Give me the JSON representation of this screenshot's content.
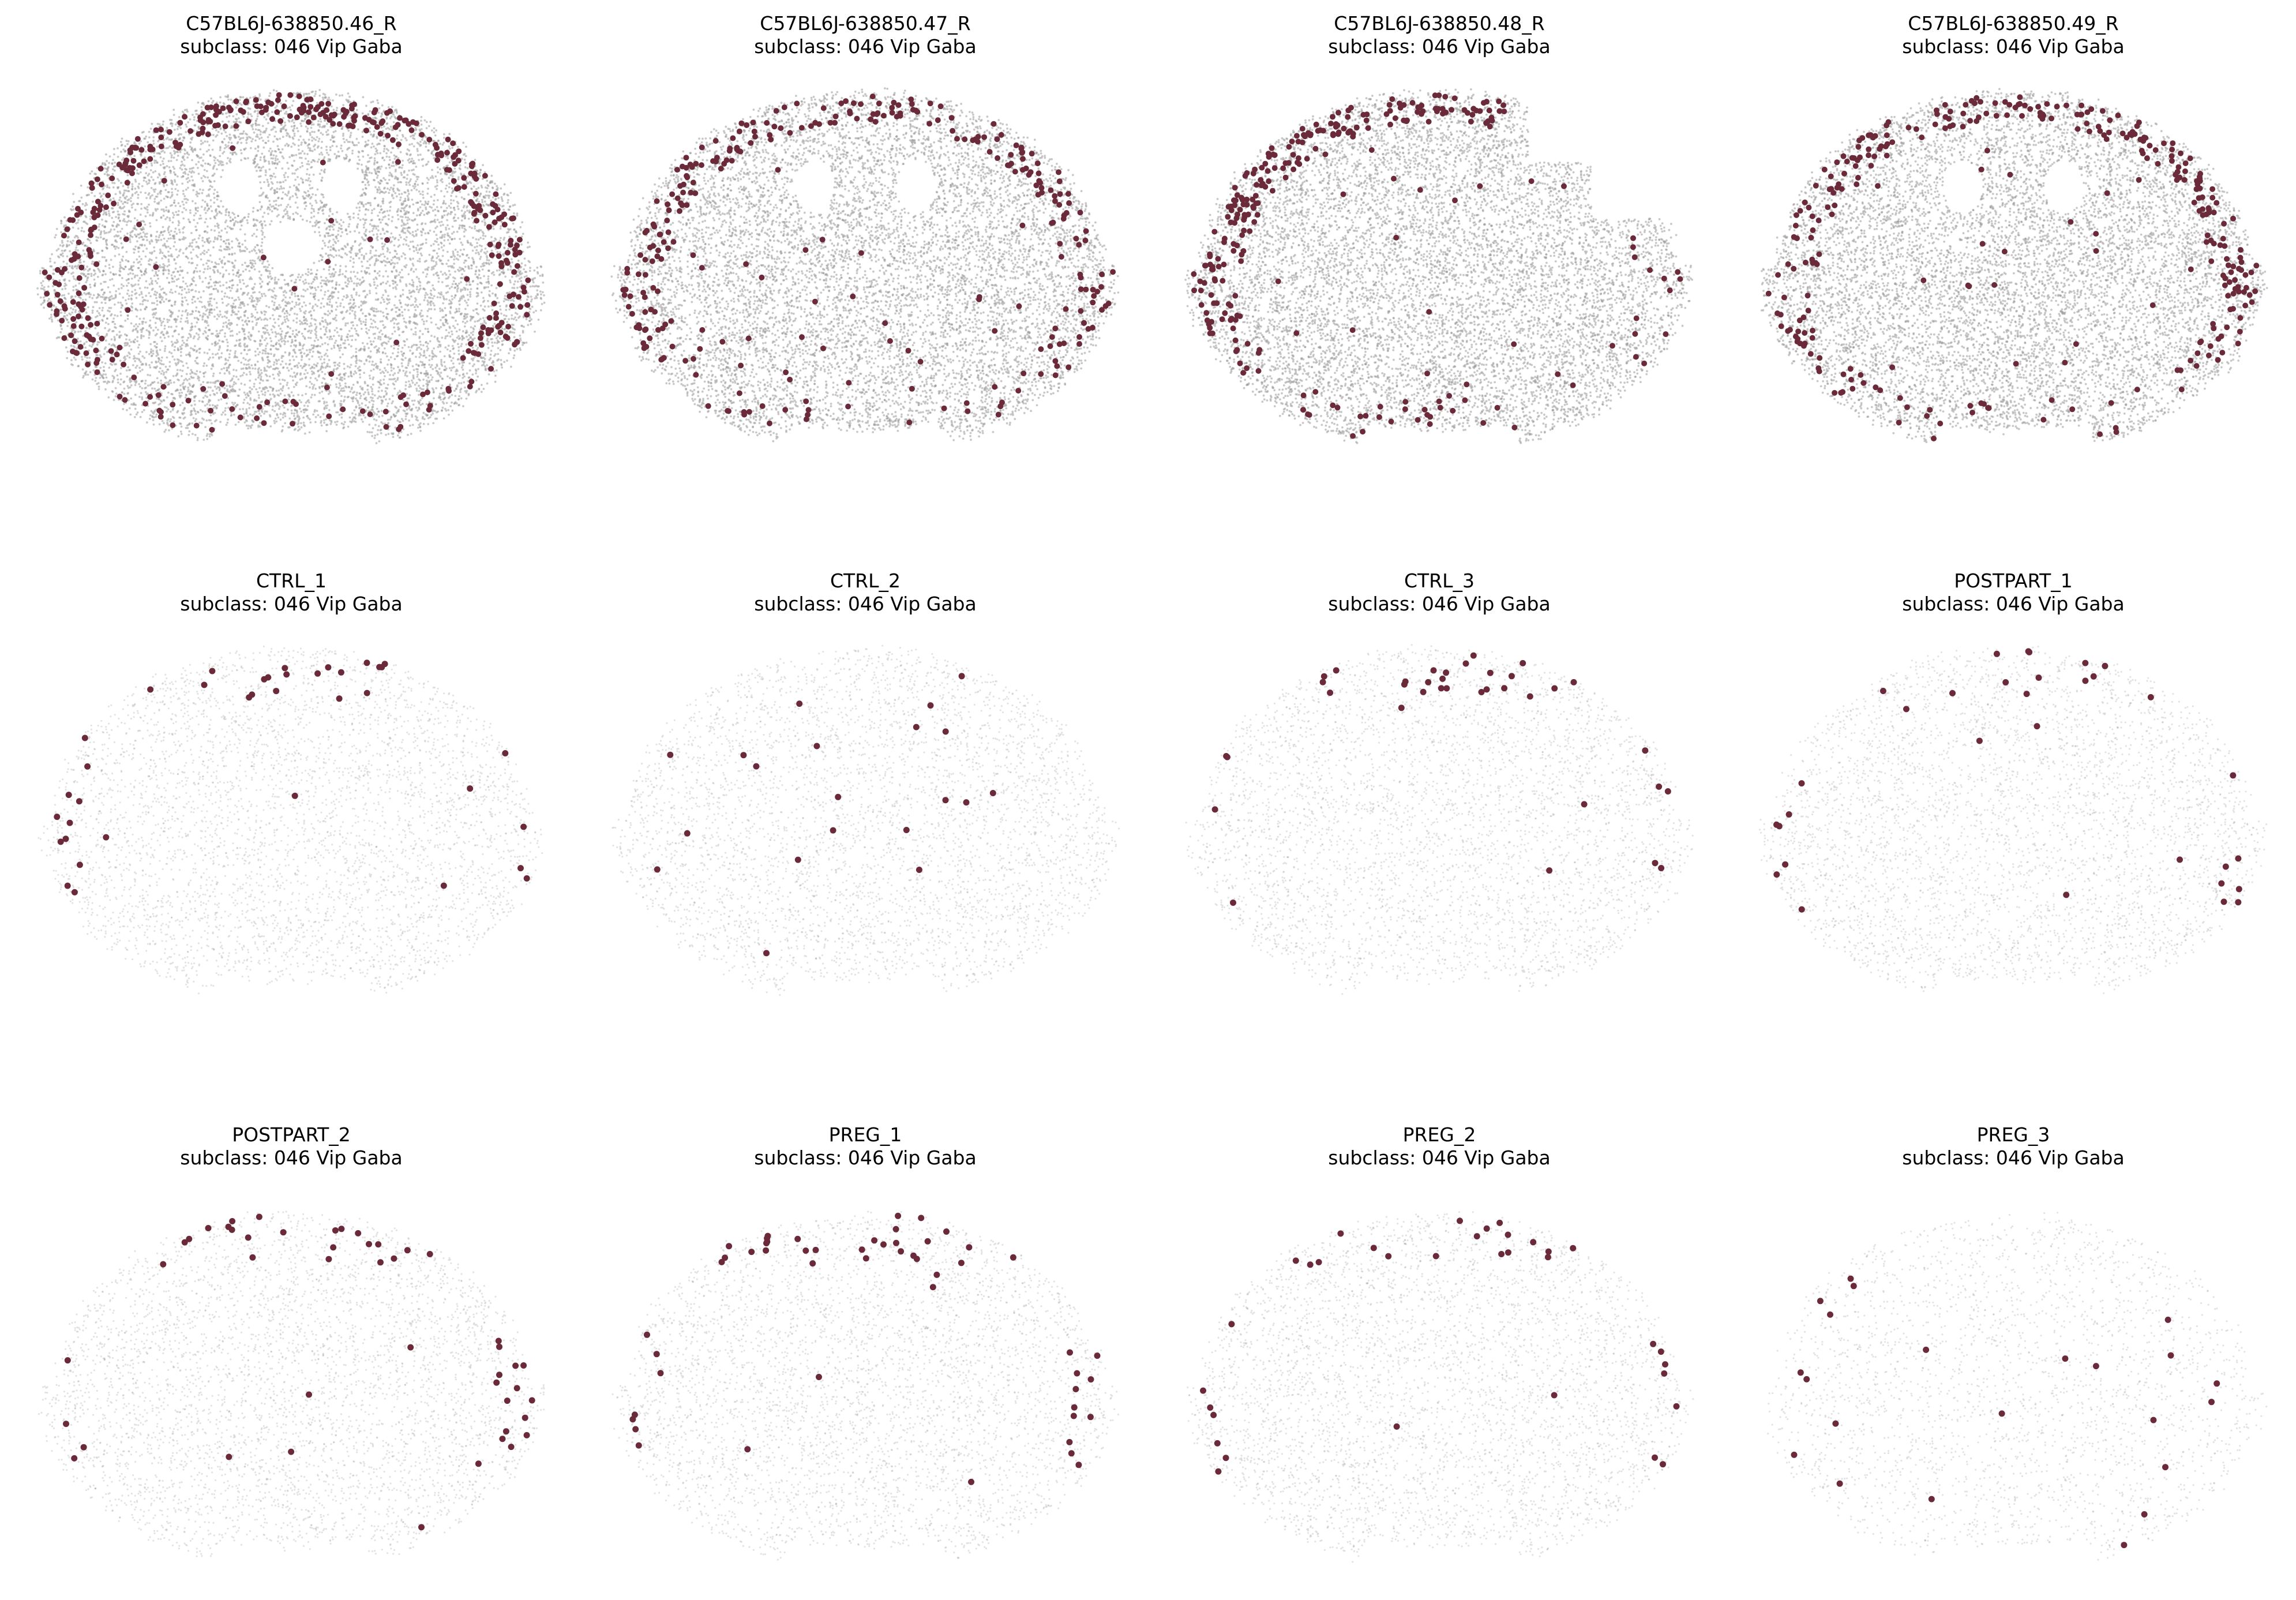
{
  "figure": {
    "background": "#ffffff",
    "base_cell_color": "#9a9a9a",
    "highlight_color": "#6b2a3a",
    "highlight_label": "subclass: 046 Vip Gaba"
  },
  "chart_data": [
    {
      "type": "scatter",
      "title": "C57BL6J-638850.46_R",
      "subtitle": "subclass: 046 Vip Gaba",
      "grid": false,
      "legend": "none",
      "density": "dense",
      "anatomy": "ventricles-midline",
      "n_highlight": 420,
      "highlight_pattern": "cortex-band"
    },
    {
      "type": "scatter",
      "title": "C57BL6J-638850.47_R",
      "subtitle": "subclass: 046 Vip Gaba",
      "grid": false,
      "legend": "none",
      "density": "dense",
      "anatomy": "ventricles",
      "n_highlight": 300,
      "highlight_pattern": "cortex-band"
    },
    {
      "type": "scatter",
      "title": "C57BL6J-638850.48_R",
      "subtitle": "subclass: 046 Vip Gaba",
      "grid": false,
      "legend": "none",
      "density": "dense",
      "anatomy": "damaged-right",
      "n_highlight": 280,
      "highlight_pattern": "cortex-left"
    },
    {
      "type": "scatter",
      "title": "C57BL6J-638850.49_R",
      "subtitle": "subclass: 046 Vip Gaba",
      "grid": false,
      "legend": "none",
      "density": "dense",
      "anatomy": "ventricles",
      "n_highlight": 320,
      "highlight_pattern": "cortex-band"
    },
    {
      "type": "scatter",
      "title": "CTRL_1",
      "subtitle": "subclass: 046 Vip Gaba",
      "grid": false,
      "legend": "none",
      "density": "sparse",
      "anatomy": "none",
      "n_highlight": 38,
      "highlight_pattern": "top-and-edges"
    },
    {
      "type": "scatter",
      "title": "CTRL_2",
      "subtitle": "subclass: 046 Vip Gaba",
      "grid": false,
      "legend": "none",
      "density": "sparse",
      "anatomy": "none",
      "n_highlight": 20,
      "highlight_pattern": "scattered"
    },
    {
      "type": "scatter",
      "title": "CTRL_3",
      "subtitle": "subclass: 046 Vip Gaba",
      "grid": false,
      "legend": "none",
      "density": "sparse",
      "anatomy": "none",
      "n_highlight": 36,
      "highlight_pattern": "top-and-edges"
    },
    {
      "type": "scatter",
      "title": "POSTPART_1",
      "subtitle": "subclass: 046 Vip Gaba",
      "grid": false,
      "legend": "none",
      "density": "sparse",
      "anatomy": "none",
      "n_highlight": 32,
      "highlight_pattern": "top-and-edges"
    },
    {
      "type": "scatter",
      "title": "POSTPART_2",
      "subtitle": "subclass: 046 Vip Gaba",
      "grid": false,
      "legend": "none",
      "density": "sparse",
      "anatomy": "none",
      "n_highlight": 46,
      "highlight_pattern": "top-and-edges"
    },
    {
      "type": "scatter",
      "title": "PREG_1",
      "subtitle": "subclass: 046 Vip Gaba",
      "grid": false,
      "legend": "none",
      "density": "sparse",
      "anatomy": "none",
      "n_highlight": 52,
      "highlight_pattern": "top-and-edges"
    },
    {
      "type": "scatter",
      "title": "PREG_2",
      "subtitle": "subclass: 046 Vip Gaba",
      "grid": false,
      "legend": "none",
      "density": "sparse",
      "anatomy": "none",
      "n_highlight": 34,
      "highlight_pattern": "top-and-edges"
    },
    {
      "type": "scatter",
      "title": "PREG_3",
      "subtitle": "subclass: 046 Vip Gaba",
      "grid": false,
      "legend": "none",
      "density": "very-sparse",
      "anatomy": "none",
      "n_highlight": 22,
      "highlight_pattern": "scattered"
    }
  ]
}
